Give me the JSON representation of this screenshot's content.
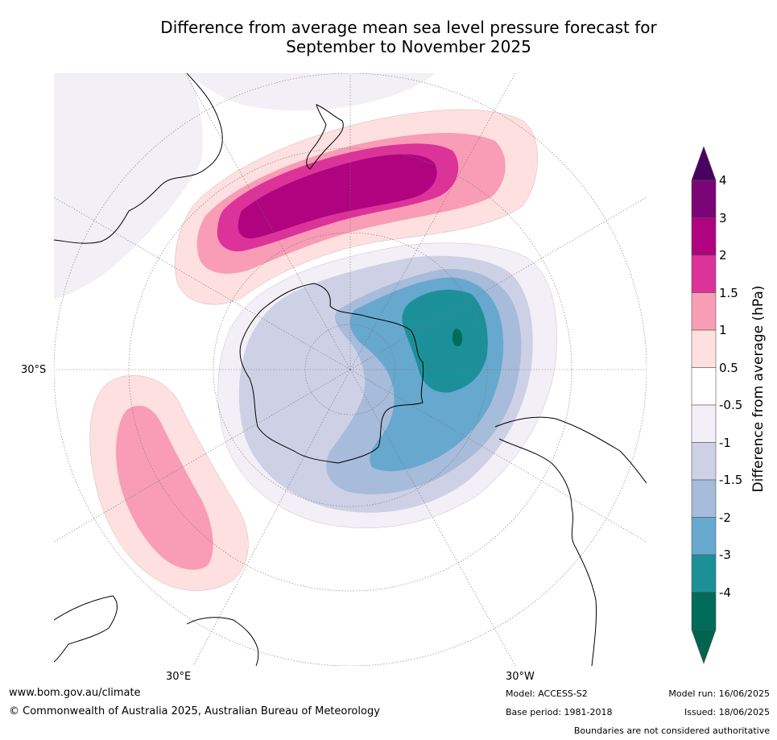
{
  "title_line1": "Difference from average mean sea level pressure forecast for",
  "title_line2": "September to November 2025",
  "colorbar": {
    "title": "Difference from average (hPa)",
    "ticks": [
      "4",
      "3",
      "2",
      "1.5",
      "1",
      "0.5",
      "-0.5",
      "-1",
      "-1.5",
      "-2",
      "-3",
      "-4"
    ],
    "colors": [
      "#7b0476",
      "#b0037f",
      "#db3399",
      "#f89db5",
      "#fde0df",
      "#ffffff",
      "#f3eff6",
      "#ced1e5",
      "#a7bbda",
      "#67a8cf",
      "#1c9099",
      "#016c59"
    ],
    "over_color": "#4a0061",
    "under_color": "#016450"
  },
  "map": {
    "lat_label": "30°S",
    "lon_labels": [
      "30°E",
      "30°W"
    ],
    "land_color": "#ffffff",
    "coast_color": "#000000",
    "border_color": "#808080"
  },
  "footer": {
    "url": "www.bom.gov.au/climate",
    "copyright": "© Commonwealth of Australia 2025, Australian Bureau of Meteorology",
    "model": "Model: ACCESS-S2",
    "base_period": "Base period: 1981-2018",
    "model_run": "Model run: 16/06/2025",
    "issued": "Issued: 18/06/2025",
    "disclaimer": "Boundaries are not considered authoritative"
  }
}
